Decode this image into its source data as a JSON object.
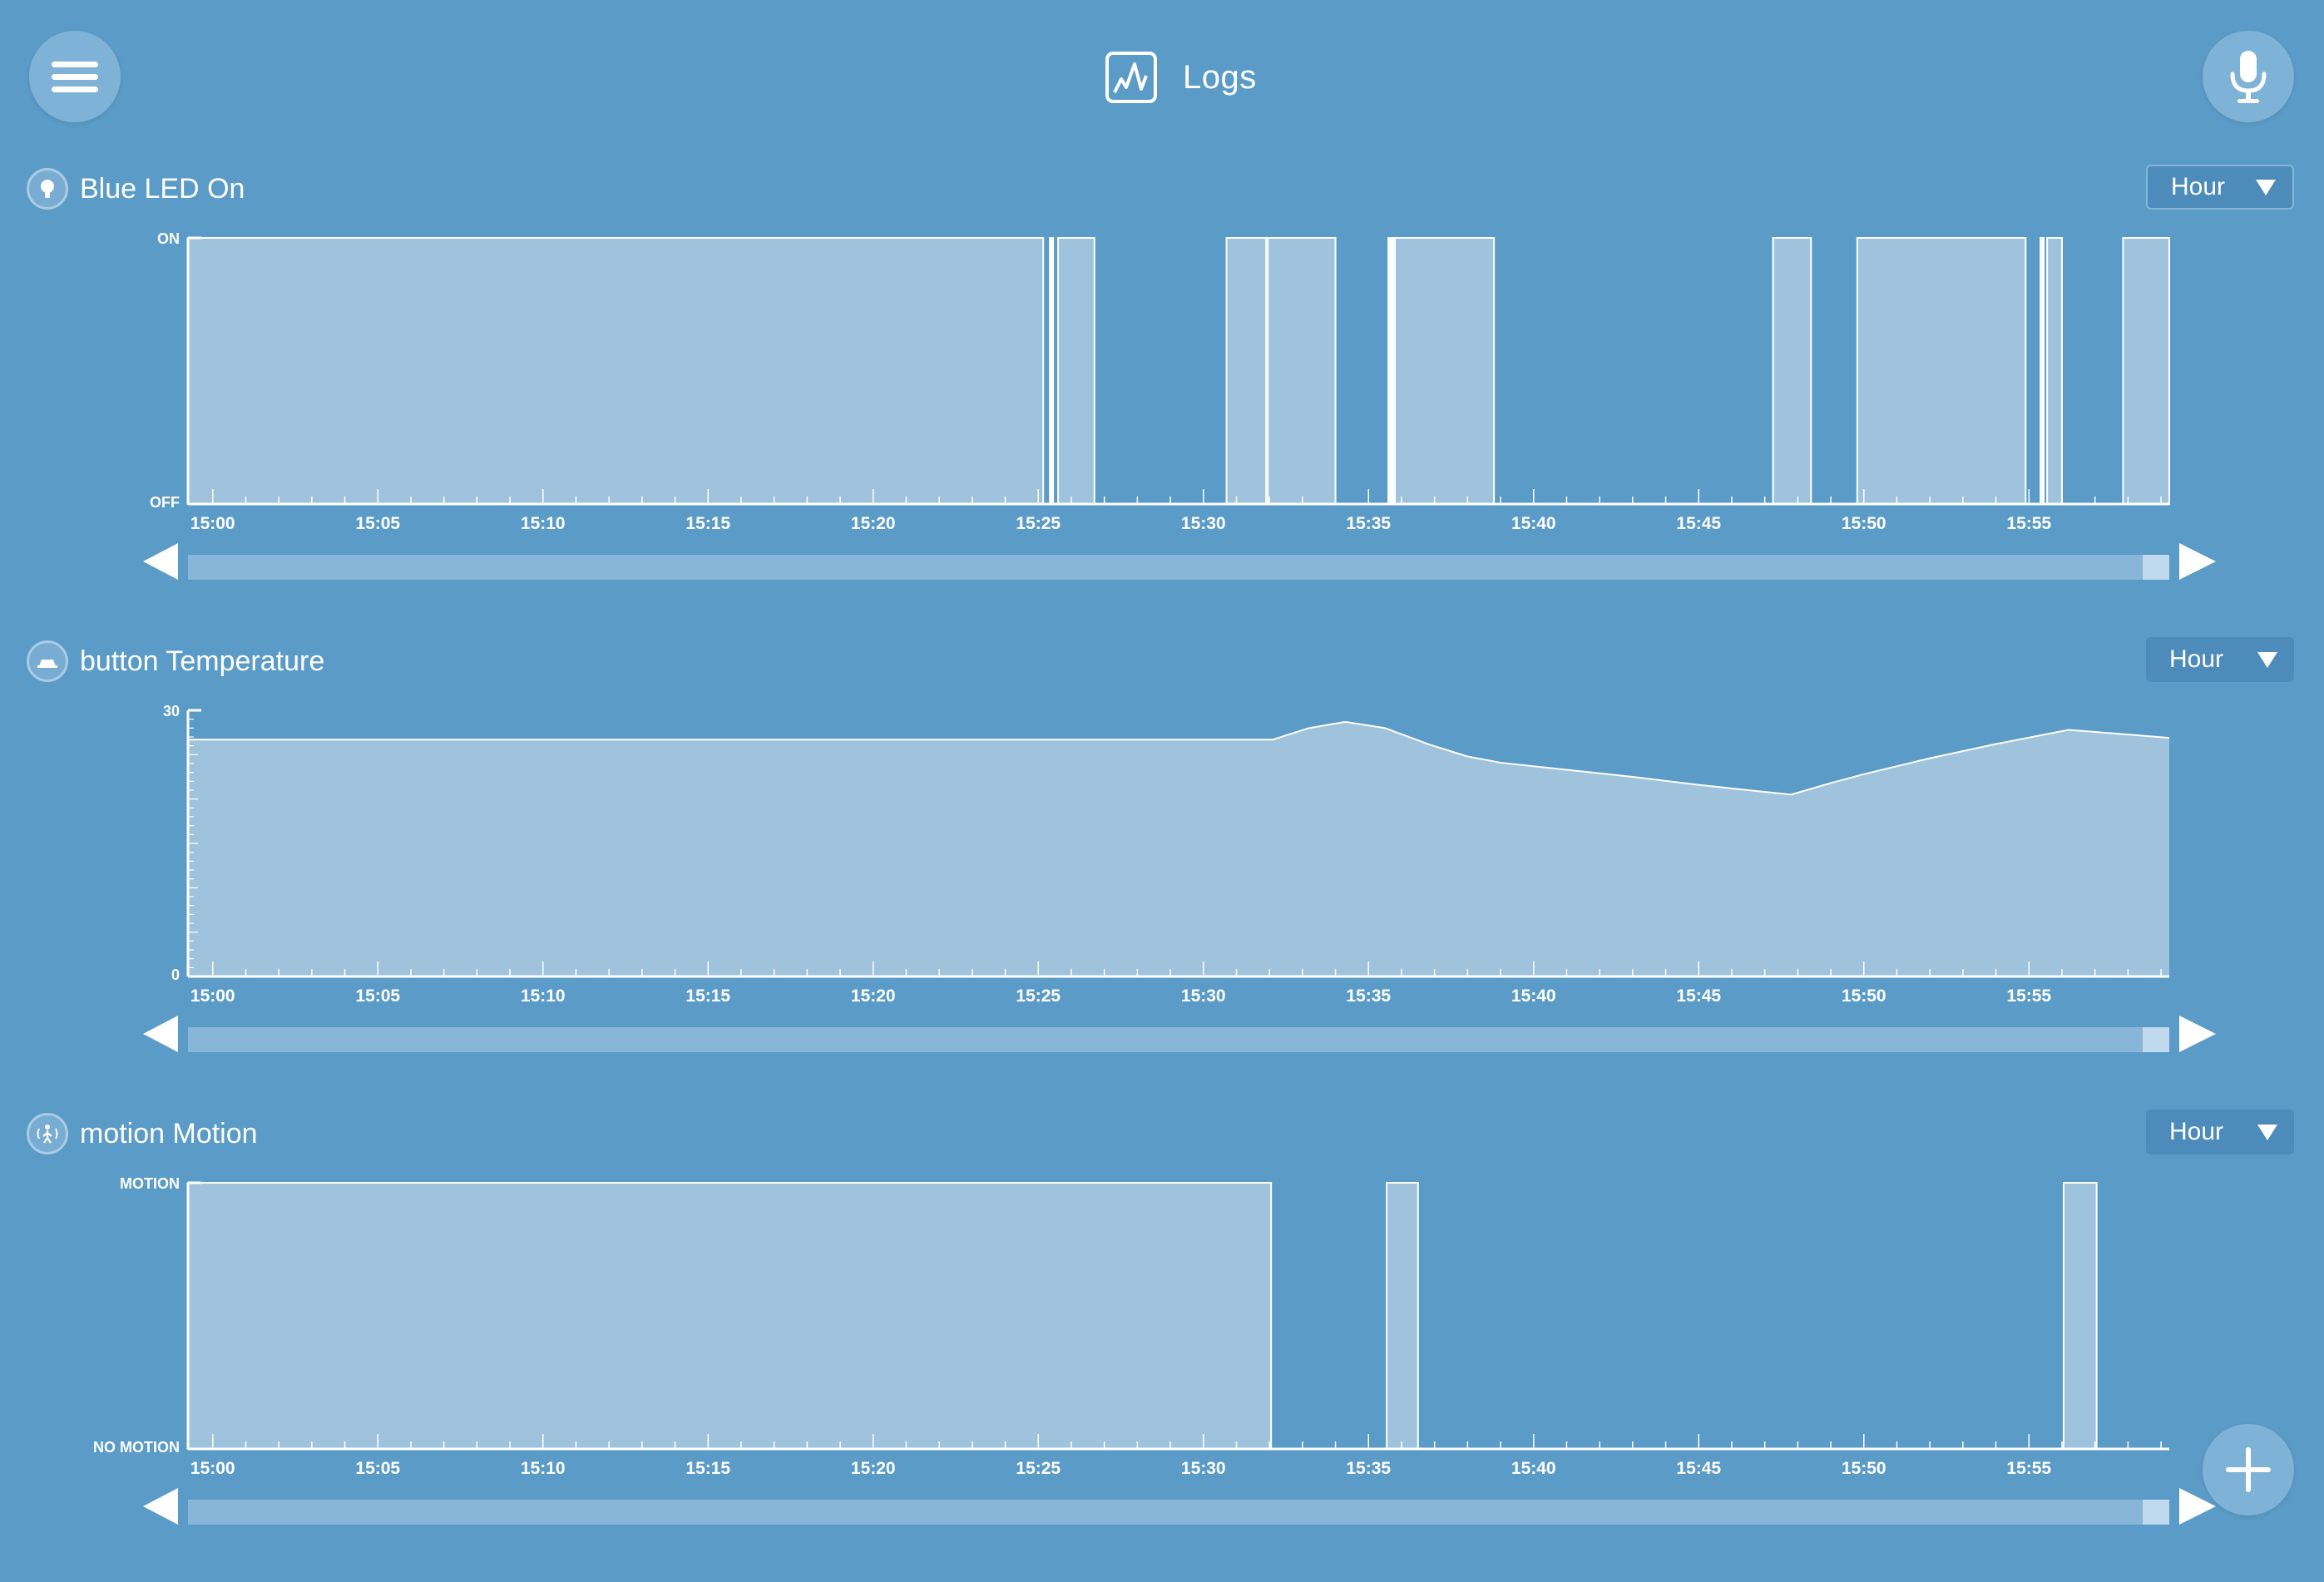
{
  "header": {
    "title": "Logs",
    "title_icon": "chart-icon",
    "menu_icon": "hamburger-menu-icon",
    "mic_icon": "microphone-icon",
    "add_icon": "plus-icon"
  },
  "colors": {
    "background": "#5b9bc7",
    "area_fill": "#9fc3dd",
    "line": "#ffffff",
    "button": "#7eb2d6",
    "select": "#4d8cba"
  },
  "time_ticks": [
    "15:00",
    "15:05",
    "15:10",
    "15:15",
    "15:20",
    "15:25",
    "15:30",
    "15:35",
    "15:40",
    "15:45",
    "15:50",
    "15:55"
  ],
  "sections": [
    {
      "title": "Blue LED On",
      "icon": "lightbulb-icon",
      "range": "Hour",
      "y_top_label": "ON",
      "y_bottom_label": "OFF"
    },
    {
      "title": "button Temperature",
      "icon": "thermometer-icon",
      "range": "Hour",
      "y_top_label": "30",
      "y_bottom_label": "0"
    },
    {
      "title": "motion Motion",
      "icon": "motion-sensor-icon",
      "range": "Hour",
      "y_top_label": "MOTION",
      "y_bottom_label": "NO MOTION"
    }
  ],
  "chart_data": [
    {
      "type": "area",
      "title": "Blue LED On",
      "x_unit": "minutes past 15:00",
      "xlim": [
        -0.75,
        59.25
      ],
      "ylim": [
        "OFF",
        "ON"
      ],
      "x_tick_labels": [
        "15:00",
        "15:05",
        "15:10",
        "15:15",
        "15:20",
        "15:25",
        "15:30",
        "15:35",
        "15:40",
        "15:45",
        "15:50",
        "15:55"
      ],
      "on_intervals": [
        [
          -0.75,
          25.15
        ],
        [
          25.35,
          25.45
        ],
        [
          25.6,
          26.7
        ],
        [
          30.7,
          31.9
        ],
        [
          31.95,
          34.0
        ],
        [
          35.6,
          35.75
        ],
        [
          35.8,
          38.8
        ],
        [
          47.25,
          48.4
        ],
        [
          49.8,
          54.9
        ],
        [
          55.35,
          55.45
        ],
        [
          55.55,
          56.0
        ],
        [
          57.85,
          59.25
        ]
      ],
      "grid": false,
      "legend": "none"
    },
    {
      "type": "area",
      "title": "button Temperature",
      "x_unit": "minutes past 15:00",
      "xlim": [
        -0.75,
        59.25
      ],
      "ylim": [
        0,
        30
      ],
      "x_tick_labels": [
        "15:00",
        "15:05",
        "15:10",
        "15:15",
        "15:20",
        "15:25",
        "15:30",
        "15:35",
        "15:40",
        "15:45",
        "15:50",
        "15:55"
      ],
      "x": [
        -0.75,
        32.1,
        33.2,
        34.3,
        35.5,
        36.8,
        38.0,
        39.0,
        41.0,
        43.0,
        45.0,
        46.5,
        47.8,
        49.0,
        50.0,
        52.0,
        54.0,
        56.2,
        59.25
      ],
      "y": [
        26.7,
        26.7,
        28.0,
        28.7,
        28.0,
        26.2,
        24.8,
        24.1,
        23.3,
        22.5,
        21.6,
        21.0,
        20.5,
        21.8,
        22.8,
        24.6,
        26.2,
        27.8,
        26.9
      ],
      "grid": false,
      "legend": "none"
    },
    {
      "type": "area",
      "title": "motion Motion",
      "x_unit": "minutes past 15:00",
      "xlim": [
        -0.75,
        59.25
      ],
      "ylim": [
        "NO MOTION",
        "MOTION"
      ],
      "x_tick_labels": [
        "15:00",
        "15:05",
        "15:10",
        "15:15",
        "15:20",
        "15:25",
        "15:30",
        "15:35",
        "15:40",
        "15:45",
        "15:50",
        "15:55"
      ],
      "on_intervals": [
        [
          -0.75,
          32.05
        ],
        [
          35.55,
          36.5
        ],
        [
          56.05,
          57.05
        ]
      ],
      "grid": false,
      "legend": "none"
    }
  ]
}
